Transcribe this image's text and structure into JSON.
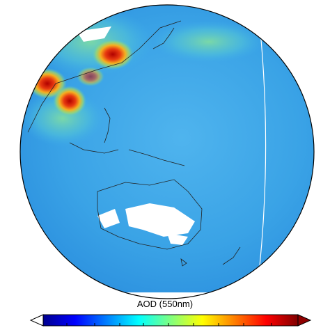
{
  "map": {
    "colorbar_label": "AOD (550nm)"
  }
}
